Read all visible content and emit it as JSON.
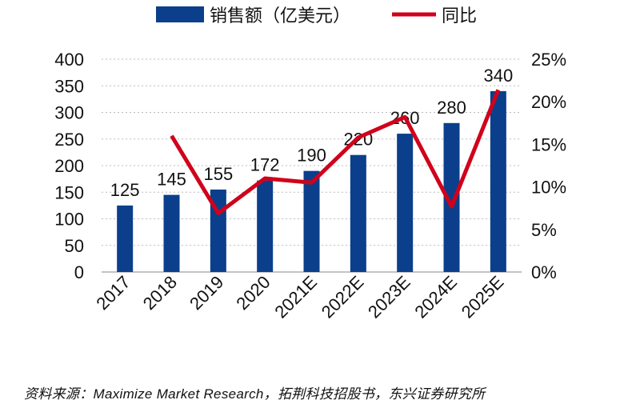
{
  "chart_data": {
    "type": "bar+line",
    "categories": [
      "2017",
      "2018",
      "2019",
      "2020",
      "2021E",
      "2022E",
      "2023E",
      "2024E",
      "2025E"
    ],
    "series": [
      {
        "name": "销售额（亿美元）",
        "type": "bar",
        "axis": "left",
        "color": "#0B3F8C",
        "values": [
          125,
          145,
          155,
          172,
          190,
          220,
          260,
          280,
          340
        ]
      },
      {
        "name": "同比",
        "type": "line",
        "axis": "right",
        "color": "#D0021B",
        "values": [
          null,
          16.0,
          6.9,
          11.0,
          10.5,
          15.8,
          18.2,
          7.7,
          21.4
        ]
      }
    ],
    "left_axis": {
      "range": [
        0,
        400
      ],
      "ticks": [
        "0",
        "50",
        "100",
        "150",
        "200",
        "250",
        "300",
        "350",
        "400"
      ]
    },
    "right_axis": {
      "range": [
        0,
        25
      ],
      "ticks": [
        "0%",
        "5%",
        "10%",
        "15%",
        "20%",
        "25%"
      ]
    },
    "grid": true,
    "legend": "top"
  },
  "source": "资料来源：Maximize Market Research，拓荆科技招股书，东兴证券研究所"
}
